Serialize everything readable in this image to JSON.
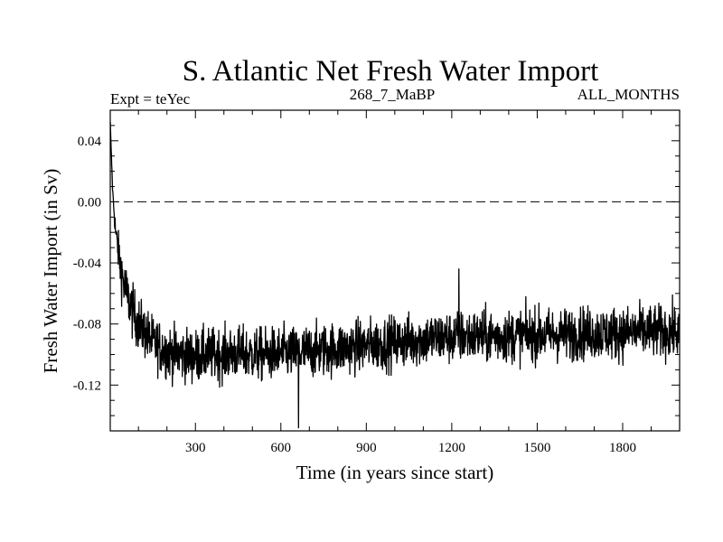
{
  "chart_data": {
    "type": "line",
    "title": "S. Atlantic Net Fresh Water Import",
    "subtitle_left": "Expt = teYec",
    "subtitle_center": "268_7_MaBP",
    "subtitle_right": "ALL_MONTHS",
    "xlabel": "Time (in years since start)",
    "ylabel": "Fresh Water Import (in Sv)",
    "xlim": [
      1,
      2000
    ],
    "ylim": [
      -0.15,
      0.06
    ],
    "xticks": [
      300,
      600,
      900,
      1200,
      1500,
      1800
    ],
    "xtick_labels": [
      "300",
      "600",
      "900",
      "1200",
      "1500",
      "1800"
    ],
    "yticks": [
      0.04,
      0.0,
      -0.04,
      -0.08,
      -0.12
    ],
    "ytick_labels": [
      "0.04",
      "0.00",
      "-0.04",
      "-0.08",
      "-0.12"
    ],
    "reference_line": {
      "y": 0.0,
      "style": "dashed"
    },
    "grid": false,
    "series": [
      {
        "name": "Net Fresh Water Import",
        "x": [
          1,
          5,
          10,
          20,
          35,
          50,
          75,
          100,
          150,
          200,
          250,
          300,
          350,
          400,
          450,
          500,
          550,
          600,
          650,
          700,
          750,
          800,
          850,
          900,
          950,
          1000,
          1050,
          1100,
          1150,
          1200,
          1250,
          1300,
          1350,
          1400,
          1450,
          1500,
          1550,
          1600,
          1650,
          1700,
          1750,
          1800,
          1850,
          1900,
          1950,
          2000
        ],
        "values": [
          0.052,
          0.03,
          0.005,
          -0.02,
          -0.04,
          -0.055,
          -0.07,
          -0.08,
          -0.092,
          -0.098,
          -0.1,
          -0.101,
          -0.1,
          -0.1,
          -0.099,
          -0.1,
          -0.1,
          -0.099,
          -0.099,
          -0.098,
          -0.097,
          -0.096,
          -0.095,
          -0.094,
          -0.093,
          -0.092,
          -0.091,
          -0.09,
          -0.089,
          -0.089,
          -0.088,
          -0.088,
          -0.088,
          -0.088,
          -0.087,
          -0.087,
          -0.087,
          -0.087,
          -0.086,
          -0.086,
          -0.086,
          -0.086,
          -0.085,
          -0.085,
          -0.085,
          -0.085
        ],
        "noise_amplitude": 0.012,
        "min_value": -0.148,
        "max_recent_spike": -0.044
      }
    ]
  },
  "colors": {
    "line": "#000000",
    "background": "#ffffff",
    "axis": "#000000"
  }
}
